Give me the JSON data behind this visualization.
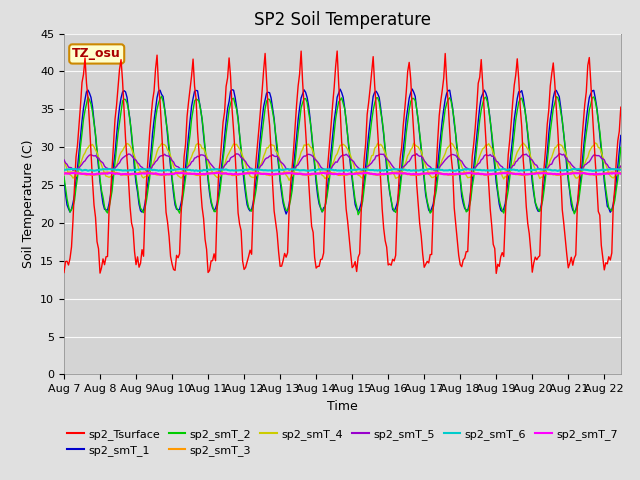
{
  "title": "SP2 Soil Temperature",
  "xlabel": "Time",
  "ylabel": "Soil Temperature (C)",
  "ylim": [
    0,
    45
  ],
  "yticks": [
    0,
    5,
    10,
    15,
    20,
    25,
    30,
    35,
    40,
    45
  ],
  "n_days": 15,
  "tz_label": "TZ_osu",
  "series_colors": {
    "sp2_Tsurface": "#ff0000",
    "sp2_smT_1": "#0000cc",
    "sp2_smT_2": "#00cc00",
    "sp2_smT_3": "#ff9900",
    "sp2_smT_4": "#cccc00",
    "sp2_smT_5": "#9900cc",
    "sp2_smT_6": "#00cccc",
    "sp2_smT_7": "#ff00ff"
  },
  "background_color": "#e0e0e0",
  "plot_background": "#d4d4d4",
  "title_fontsize": 12,
  "label_fontsize": 9,
  "tick_fontsize": 8,
  "legend_fontsize": 8
}
